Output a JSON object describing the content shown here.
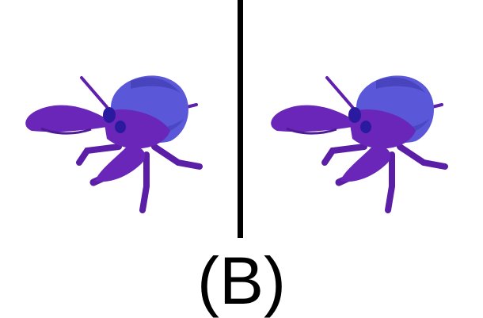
{
  "label": "(B)",
  "colors": {
    "background": "#ffffff",
    "divider": "#000000",
    "crab_body": "#6a26b8",
    "crab_body_dark": "#4f1a96",
    "shell": "#5a58d8",
    "shell_dark": "#3f3cb4",
    "eyes": "#2a1aa0"
  },
  "images": [
    {
      "subject": "purple-hermit-crab"
    },
    {
      "subject": "purple-hermit-crab"
    }
  ]
}
